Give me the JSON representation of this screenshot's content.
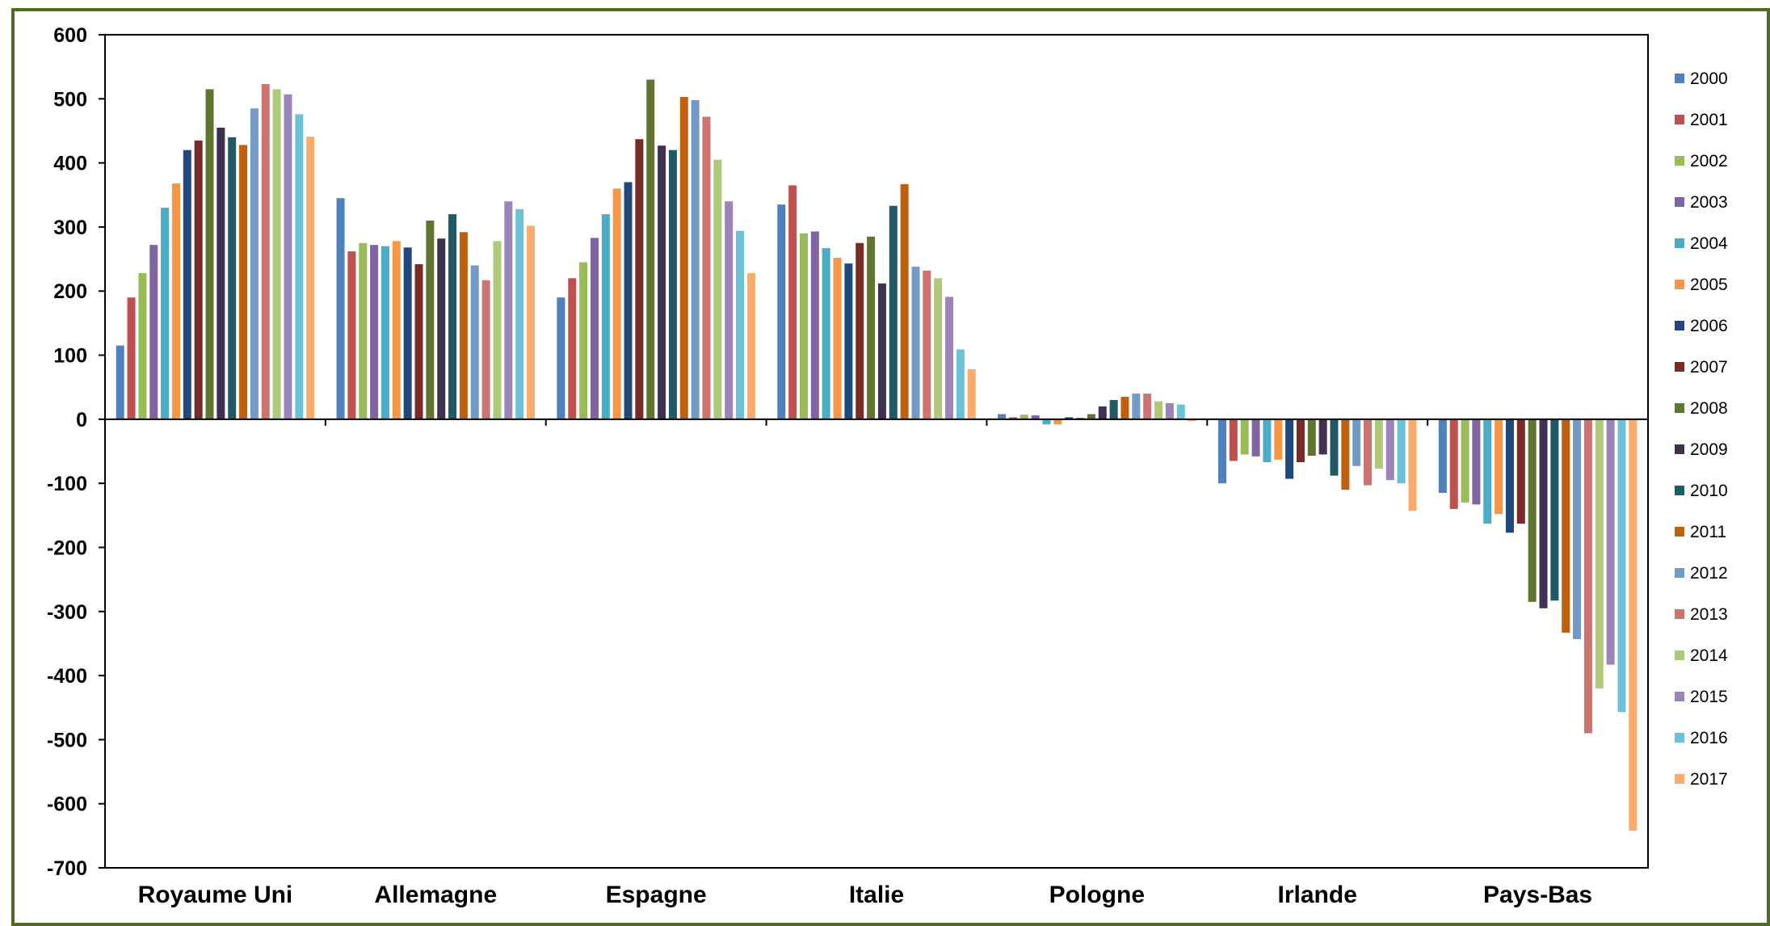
{
  "chart_data": {
    "type": "bar",
    "title": "",
    "xlabel": "",
    "ylabel": "",
    "ylim": [
      -700,
      600
    ],
    "yticks": [
      600,
      500,
      400,
      300,
      200,
      100,
      0,
      -100,
      -200,
      -300,
      -400,
      -500,
      -600,
      -700
    ],
    "grid": false,
    "legend_position": "right",
    "categories": [
      "Royaume Uni",
      "Allemagne",
      "Espagne",
      "Italie",
      "Pologne",
      "Irlande",
      "Pays-Bas"
    ],
    "series": [
      {
        "name": "2000",
        "color": "#4F81BD",
        "values": [
          115,
          345,
          190,
          335,
          8,
          -100,
          -115
        ]
      },
      {
        "name": "2001",
        "color": "#C0504D",
        "values": [
          190,
          262,
          220,
          365,
          3,
          -65,
          -140
        ]
      },
      {
        "name": "2002",
        "color": "#9BBB59",
        "values": [
          228,
          275,
          245,
          290,
          7,
          -55,
          -130
        ]
      },
      {
        "name": "2003",
        "color": "#8064A2",
        "values": [
          272,
          272,
          283,
          293,
          6,
          -58,
          -133
        ]
      },
      {
        "name": "2004",
        "color": "#4BACC6",
        "values": [
          330,
          270,
          320,
          267,
          -8,
          -67,
          -163
        ]
      },
      {
        "name": "2005",
        "color": "#F79646",
        "values": [
          368,
          278,
          360,
          252,
          -8,
          -63,
          -148
        ]
      },
      {
        "name": "2006",
        "color": "#1F497D",
        "values": [
          420,
          268,
          370,
          243,
          3,
          -93,
          -177
        ]
      },
      {
        "name": "2007",
        "color": "#772C2A",
        "values": [
          435,
          242,
          437,
          275,
          2,
          -67,
          -163
        ]
      },
      {
        "name": "2008",
        "color": "#5F7530",
        "values": [
          515,
          310,
          530,
          285,
          8,
          -57,
          -285
        ]
      },
      {
        "name": "2009",
        "color": "#403152",
        "values": [
          455,
          282,
          427,
          212,
          20,
          -55,
          -295
        ]
      },
      {
        "name": "2010",
        "color": "#215967",
        "values": [
          440,
          320,
          420,
          333,
          30,
          -88,
          -283
        ]
      },
      {
        "name": "2011",
        "color": "#C0600E",
        "values": [
          428,
          292,
          503,
          367,
          35,
          -110,
          -333
        ]
      },
      {
        "name": "2012",
        "color": "#7399C6",
        "values": [
          485,
          240,
          498,
          238,
          40,
          -73,
          -343
        ]
      },
      {
        "name": "2013",
        "color": "#CD7371",
        "values": [
          523,
          217,
          472,
          232,
          40,
          -103,
          -490
        ]
      },
      {
        "name": "2014",
        "color": "#AFC97A",
        "values": [
          515,
          278,
          405,
          220,
          28,
          -77,
          -420
        ]
      },
      {
        "name": "2015",
        "color": "#9B85B8",
        "values": [
          507,
          340,
          340,
          191,
          25,
          -95,
          -383
        ]
      },
      {
        "name": "2016",
        "color": "#6BC1D8",
        "values": [
          476,
          328,
          294,
          109,
          23,
          -100,
          -457
        ]
      },
      {
        "name": "2017",
        "color": "#F9AC6B",
        "values": [
          441,
          302,
          228,
          78,
          -3,
          -143,
          -642
        ]
      }
    ]
  },
  "colors": {
    "frame_border": "#4E6B22",
    "axis": "#000000"
  }
}
